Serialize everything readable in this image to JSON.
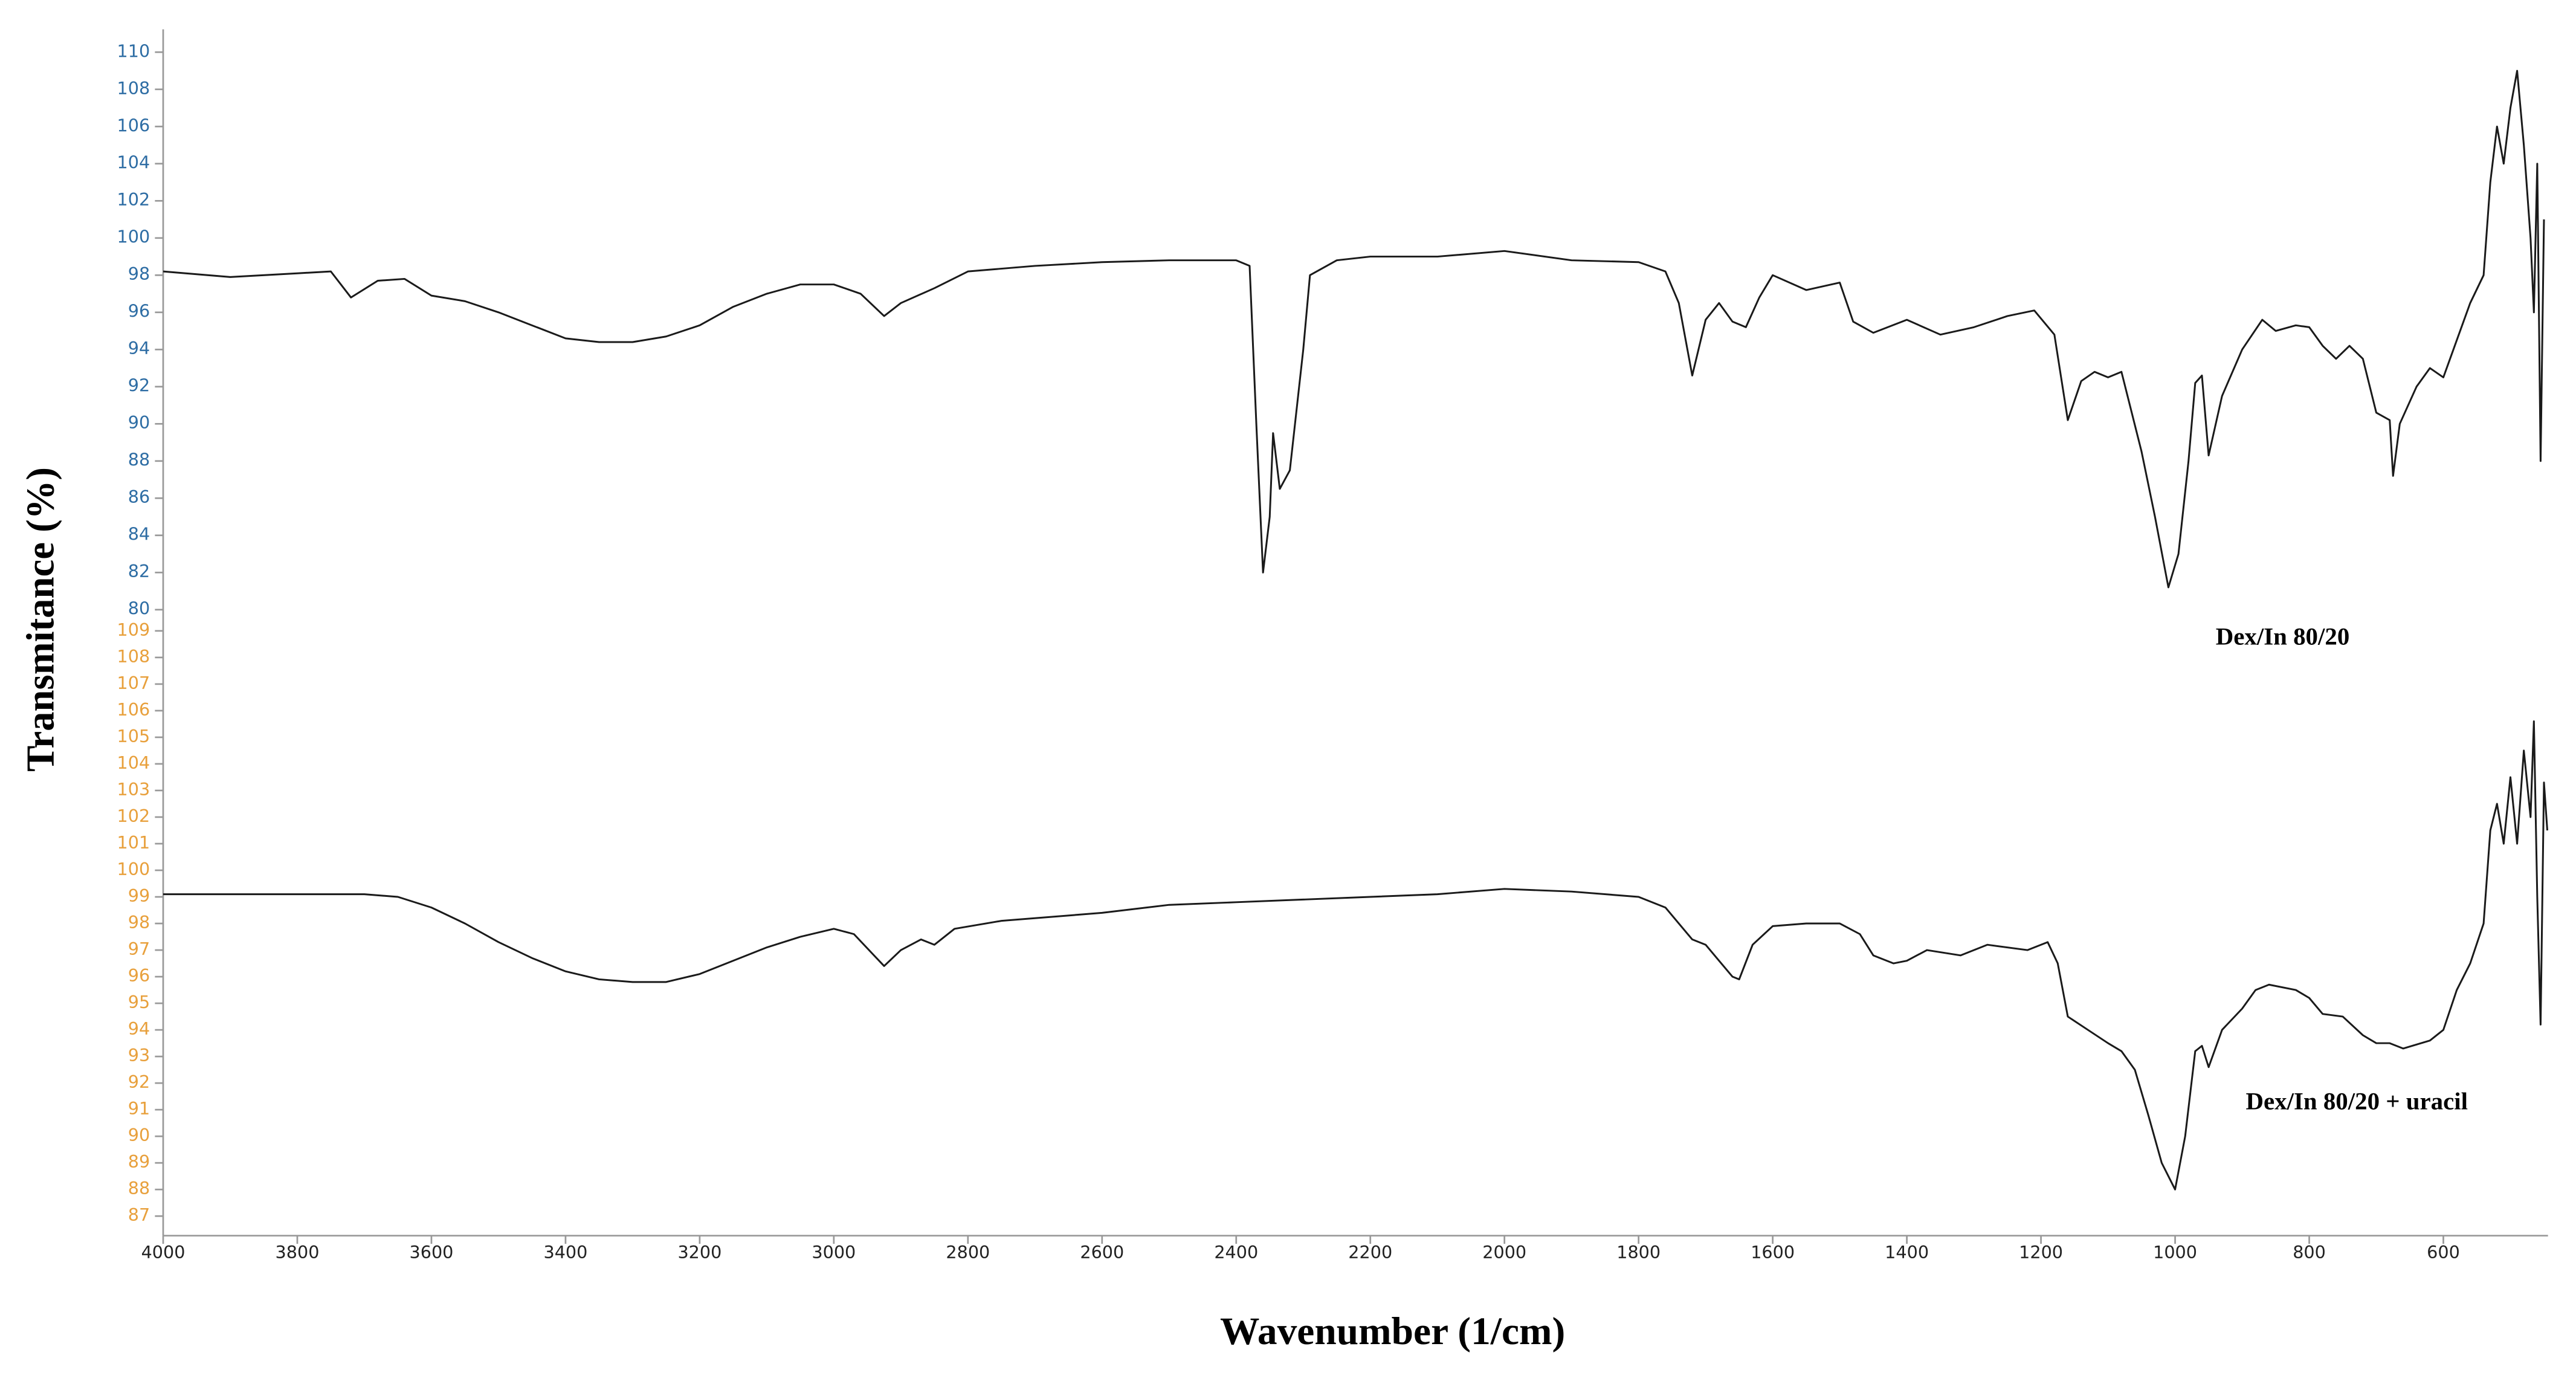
{
  "chart_data": [
    {
      "type": "line",
      "ylabel": "Transmitance (%)",
      "annotation": "Dex/In 80/20",
      "ylim": [
        80,
        110
      ],
      "yticks": [
        80,
        82,
        84,
        86,
        88,
        90,
        92,
        94,
        96,
        98,
        100,
        102,
        104,
        106,
        108,
        110
      ],
      "tick_color": "#2e6da4",
      "x": [
        4000,
        3900,
        3800,
        3750,
        3720,
        3680,
        3640,
        3600,
        3550,
        3500,
        3450,
        3400,
        3350,
        3300,
        3250,
        3200,
        3150,
        3100,
        3050,
        3000,
        2960,
        2925,
        2900,
        2850,
        2800,
        2700,
        2600,
        2500,
        2400,
        2380,
        2370,
        2360,
        2350,
        2345,
        2335,
        2320,
        2300,
        2290,
        2250,
        2200,
        2100,
        2000,
        1900,
        1800,
        1760,
        1740,
        1720,
        1700,
        1680,
        1660,
        1640,
        1620,
        1600,
        1550,
        1500,
        1480,
        1450,
        1400,
        1350,
        1300,
        1250,
        1210,
        1180,
        1160,
        1140,
        1120,
        1100,
        1080,
        1050,
        1030,
        1010,
        995,
        980,
        970,
        960,
        950,
        930,
        900,
        870,
        850,
        820,
        800,
        780,
        760,
        740,
        720,
        700,
        680,
        675,
        665,
        640,
        620,
        600,
        580,
        560,
        540,
        530,
        520,
        510,
        500,
        490,
        480,
        470,
        465,
        460,
        455,
        450
      ],
      "series": [
        {
          "color": "#1a1a1a",
          "values": [
            98.2,
            97.9,
            98.1,
            98.2,
            96.8,
            97.7,
            97.8,
            96.9,
            96.6,
            96.0,
            95.3,
            94.6,
            94.4,
            94.4,
            94.7,
            95.3,
            96.3,
            97.0,
            97.5,
            97.5,
            97.0,
            95.8,
            96.5,
            97.3,
            98.2,
            98.5,
            98.7,
            98.8,
            98.8,
            98.5,
            90,
            82,
            85,
            89.5,
            86.5,
            87.5,
            94,
            98,
            98.8,
            99.0,
            99.0,
            99.3,
            98.8,
            98.7,
            98.2,
            96.5,
            92.6,
            95.6,
            96.5,
            95.5,
            95.2,
            96.8,
            98.0,
            97.2,
            97.6,
            95.5,
            94.9,
            95.6,
            94.8,
            95.2,
            95.8,
            96.1,
            94.8,
            90.2,
            92.3,
            92.8,
            92.5,
            92.8,
            88.5,
            85,
            81.2,
            83,
            88,
            92.2,
            92.6,
            88.3,
            91.5,
            94.0,
            95.6,
            95.0,
            95.3,
            95.2,
            94.2,
            93.5,
            94.2,
            93.5,
            90.6,
            90.2,
            87.2,
            90.0,
            92.0,
            93.0,
            92.5,
            94.5,
            96.5,
            98.0,
            103,
            106,
            104,
            107,
            109,
            105,
            100,
            96,
            104,
            88,
            101
          ]
        }
      ]
    },
    {
      "type": "line",
      "xlabel": "Wavenumber (1/cm)",
      "annotation": "Dex/In 80/20 + uracil",
      "xlim": [
        4000,
        444
      ],
      "xticks": [
        4000,
        3800,
        3600,
        3400,
        3200,
        3000,
        2800,
        2600,
        2400,
        2200,
        2000,
        1800,
        1600,
        1400,
        1200,
        1000,
        800,
        600
      ],
      "ylim": [
        87,
        109
      ],
      "yticks": [
        87,
        88,
        89,
        90,
        91,
        92,
        93,
        94,
        95,
        96,
        97,
        98,
        99,
        100,
        101,
        102,
        103,
        104,
        105,
        106,
        107,
        108,
        109
      ],
      "tick_color": "#e8a03c",
      "x": [
        4000,
        3800,
        3700,
        3650,
        3600,
        3550,
        3500,
        3450,
        3400,
        3350,
        3300,
        3250,
        3200,
        3150,
        3100,
        3050,
        3000,
        2970,
        2940,
        2925,
        2900,
        2870,
        2850,
        2820,
        2750,
        2600,
        2500,
        2400,
        2300,
        2200,
        2100,
        2000,
        1900,
        1800,
        1760,
        1720,
        1700,
        1680,
        1660,
        1650,
        1630,
        1600,
        1550,
        1500,
        1470,
        1450,
        1420,
        1400,
        1370,
        1320,
        1280,
        1220,
        1190,
        1175,
        1160,
        1130,
        1100,
        1080,
        1060,
        1040,
        1020,
        1000,
        985,
        970,
        960,
        950,
        930,
        900,
        880,
        860,
        820,
        800,
        780,
        750,
        720,
        700,
        680,
        660,
        620,
        600,
        580,
        560,
        540,
        530,
        520,
        510,
        500,
        490,
        480,
        470,
        465,
        460,
        455,
        450,
        445
      ],
      "series": [
        {
          "color": "#1a1a1a",
          "values": [
            99.1,
            99.1,
            99.1,
            99.0,
            98.6,
            98.0,
            97.3,
            96.7,
            96.2,
            95.9,
            95.8,
            95.8,
            96.1,
            96.6,
            97.1,
            97.5,
            97.8,
            97.6,
            96.8,
            96.4,
            97.0,
            97.4,
            97.2,
            97.8,
            98.1,
            98.4,
            98.7,
            98.8,
            98.9,
            99.0,
            99.1,
            99.3,
            99.2,
            99.0,
            98.6,
            97.4,
            97.2,
            96.6,
            96.0,
            95.9,
            97.2,
            97.9,
            98.0,
            98.0,
            97.6,
            96.8,
            96.5,
            96.6,
            97.0,
            96.8,
            97.2,
            97.0,
            97.3,
            96.5,
            94.5,
            94.0,
            93.5,
            93.2,
            92.5,
            90.8,
            89,
            88.0,
            90,
            93.2,
            93.4,
            92.6,
            94.0,
            94.8,
            95.5,
            95.7,
            95.5,
            95.2,
            94.6,
            94.5,
            93.8,
            93.5,
            93.5,
            93.3,
            93.6,
            94.0,
            95.5,
            96.5,
            98.0,
            101.5,
            102.5,
            101,
            103.5,
            101,
            104.5,
            102.0,
            105.6,
            99,
            94.2,
            103.3,
            101.5
          ]
        }
      ]
    }
  ]
}
